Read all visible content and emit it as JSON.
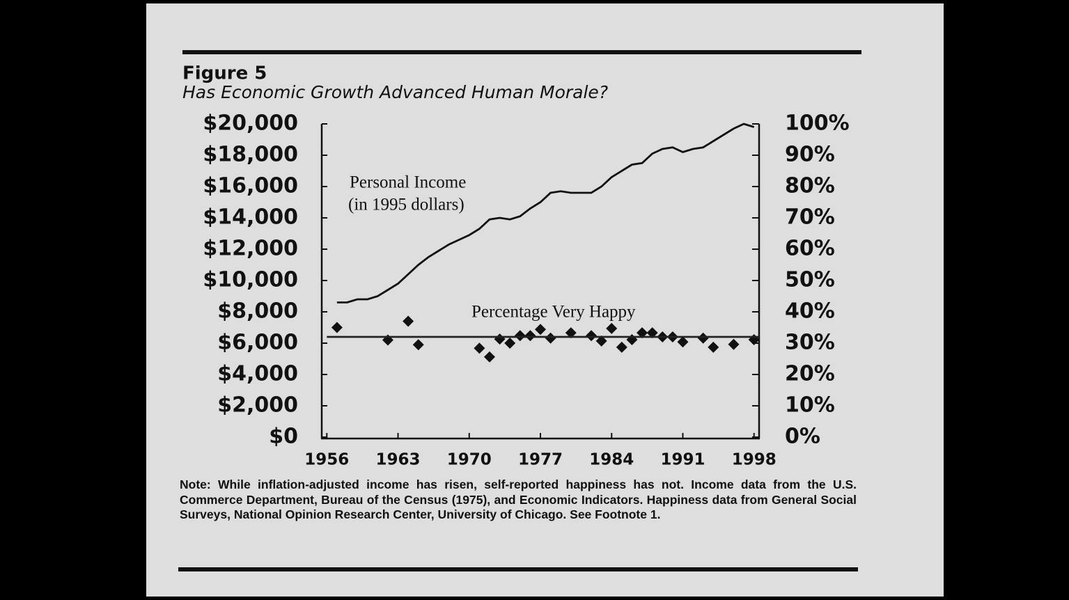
{
  "chart_data": {
    "type": "line",
    "title": "Figure 5",
    "subtitle": "Has Economic Growth Advanced Human Morale?",
    "annotations": [
      "Personal Income",
      "(in 1995 dollars)",
      "Percentage Very Happy"
    ],
    "note": "Note:  While inflation-adjusted income has risen, self-reported happiness has not. Income data from the U.S. Commerce Department, Bureau of the Census (1975), and Economic Indicators. Happiness data from General Social Surveys, National Opinion Research Center, University of Chicago. See Footnote 1.",
    "xlim": [
      1955.5,
      1998.5
    ],
    "xticks": [
      1956,
      1963,
      1970,
      1977,
      1984,
      1991,
      1998
    ],
    "ylim": [
      0,
      20000
    ],
    "yticks": [
      {
        "value": 0,
        "label": "$0"
      },
      {
        "value": 2000,
        "label": "$2,000"
      },
      {
        "value": 4000,
        "label": "$4,000"
      },
      {
        "value": 6000,
        "label": "$6,000"
      },
      {
        "value": 8000,
        "label": "$8,000"
      },
      {
        "value": 10000,
        "label": "$10,000"
      },
      {
        "value": 12000,
        "label": "$12,000"
      },
      {
        "value": 14000,
        "label": "$14,000"
      },
      {
        "value": 16000,
        "label": "$16,000"
      },
      {
        "value": 18000,
        "label": "$18,000"
      },
      {
        "value": 20000,
        "label": "$20,000"
      }
    ],
    "y2lim": [
      0,
      100
    ],
    "y2ticks": [
      {
        "value": 0,
        "label": "0%"
      },
      {
        "value": 10,
        "label": "10%"
      },
      {
        "value": 20,
        "label": "20%"
      },
      {
        "value": 30,
        "label": "30%"
      },
      {
        "value": 40,
        "label": "40%"
      },
      {
        "value": 50,
        "label": "50%"
      },
      {
        "value": 60,
        "label": "60%"
      },
      {
        "value": 70,
        "label": "70%"
      },
      {
        "value": 80,
        "label": "80%"
      },
      {
        "value": 90,
        "label": "90%"
      },
      {
        "value": 100,
        "label": "100%"
      }
    ],
    "series": [
      {
        "type": "line",
        "color": "#111111",
        "x": [
          1957,
          1958,
          1959,
          1960,
          1961,
          1962,
          1963,
          1964,
          1965,
          1966,
          1967,
          1968,
          1969,
          1970,
          1971,
          1972,
          1973,
          1974,
          1975,
          1976,
          1977,
          1978,
          1979,
          1980,
          1981,
          1982,
          1983,
          1984,
          1985,
          1986,
          1987,
          1988,
          1989,
          1990,
          1991,
          1992,
          1993,
          1994,
          1995,
          1996,
          1997,
          1998
        ],
        "values": [
          8600,
          8600,
          8800,
          8800,
          9000,
          9400,
          9800,
          10400,
          11000,
          11500,
          11900,
          12300,
          12600,
          12900,
          13300,
          13900,
          14000,
          13900,
          14100,
          14600,
          15000,
          15600,
          15700,
          15600,
          15600,
          15600,
          16000,
          16600,
          17000,
          17400,
          17500,
          18100,
          18400,
          18500,
          18200,
          18400,
          18500,
          18900,
          19300,
          19700,
          20000,
          19800
        ]
      },
      {
        "type": "scatter",
        "axis": "y2",
        "color": "#111111",
        "x": [
          1957,
          1962,
          1964,
          1965,
          1971,
          1972,
          1973,
          1974,
          1975,
          1976,
          1977,
          1978,
          1980,
          1982,
          1983,
          1984,
          1985,
          1986,
          1987,
          1988,
          1989,
          1990,
          1991,
          1993,
          1994,
          1996,
          1998
        ],
        "values": [
          35,
          31,
          37,
          29.5,
          28.4,
          25.6,
          31.3,
          30,
          32.4,
          32.4,
          34.4,
          31.6,
          33.3,
          32.4,
          30.7,
          34.7,
          28.7,
          31.1,
          33.3,
          33.3,
          32,
          32,
          30.4,
          31.6,
          28.7,
          29.6,
          31.1
        ]
      },
      {
        "type": "line",
        "axis": "y2",
        "color": "#222222",
        "x": [
          1956,
          1998.5
        ],
        "values": [
          32,
          32
        ]
      }
    ]
  }
}
